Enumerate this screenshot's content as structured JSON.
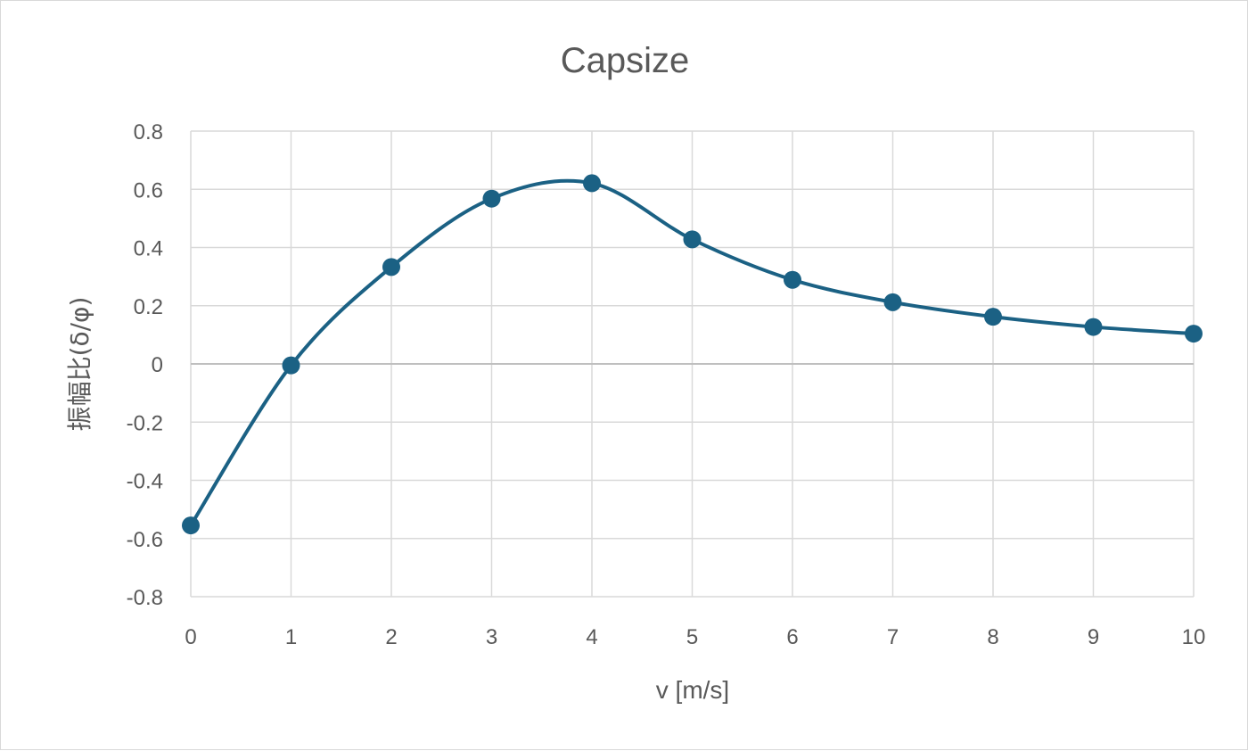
{
  "chart_data": {
    "type": "line",
    "title": "Capsize",
    "xlabel": "v [m/s]",
    "ylabel": "振幅比(δ/φ)",
    "xlim": [
      0,
      10
    ],
    "ylim": [
      -0.8,
      0.8
    ],
    "x_ticks": [
      "0",
      "1",
      "2",
      "3",
      "4",
      "5",
      "6",
      "7",
      "8",
      "9",
      "10"
    ],
    "y_ticks": [
      "0.8",
      "0.6",
      "0.4",
      "0.2",
      "0",
      "-0.2",
      "-0.4",
      "-0.6",
      "-0.8"
    ],
    "grid": true,
    "smooth": true,
    "markers": true,
    "series": [
      {
        "color": "#1b6184",
        "x": [
          0,
          1,
          2,
          3,
          4,
          5,
          6,
          7,
          8,
          9,
          10
        ],
        "y": [
          -0.555,
          -0.005,
          0.333,
          0.568,
          0.621,
          0.428,
          0.289,
          0.212,
          0.162,
          0.127,
          0.104
        ]
      }
    ]
  }
}
